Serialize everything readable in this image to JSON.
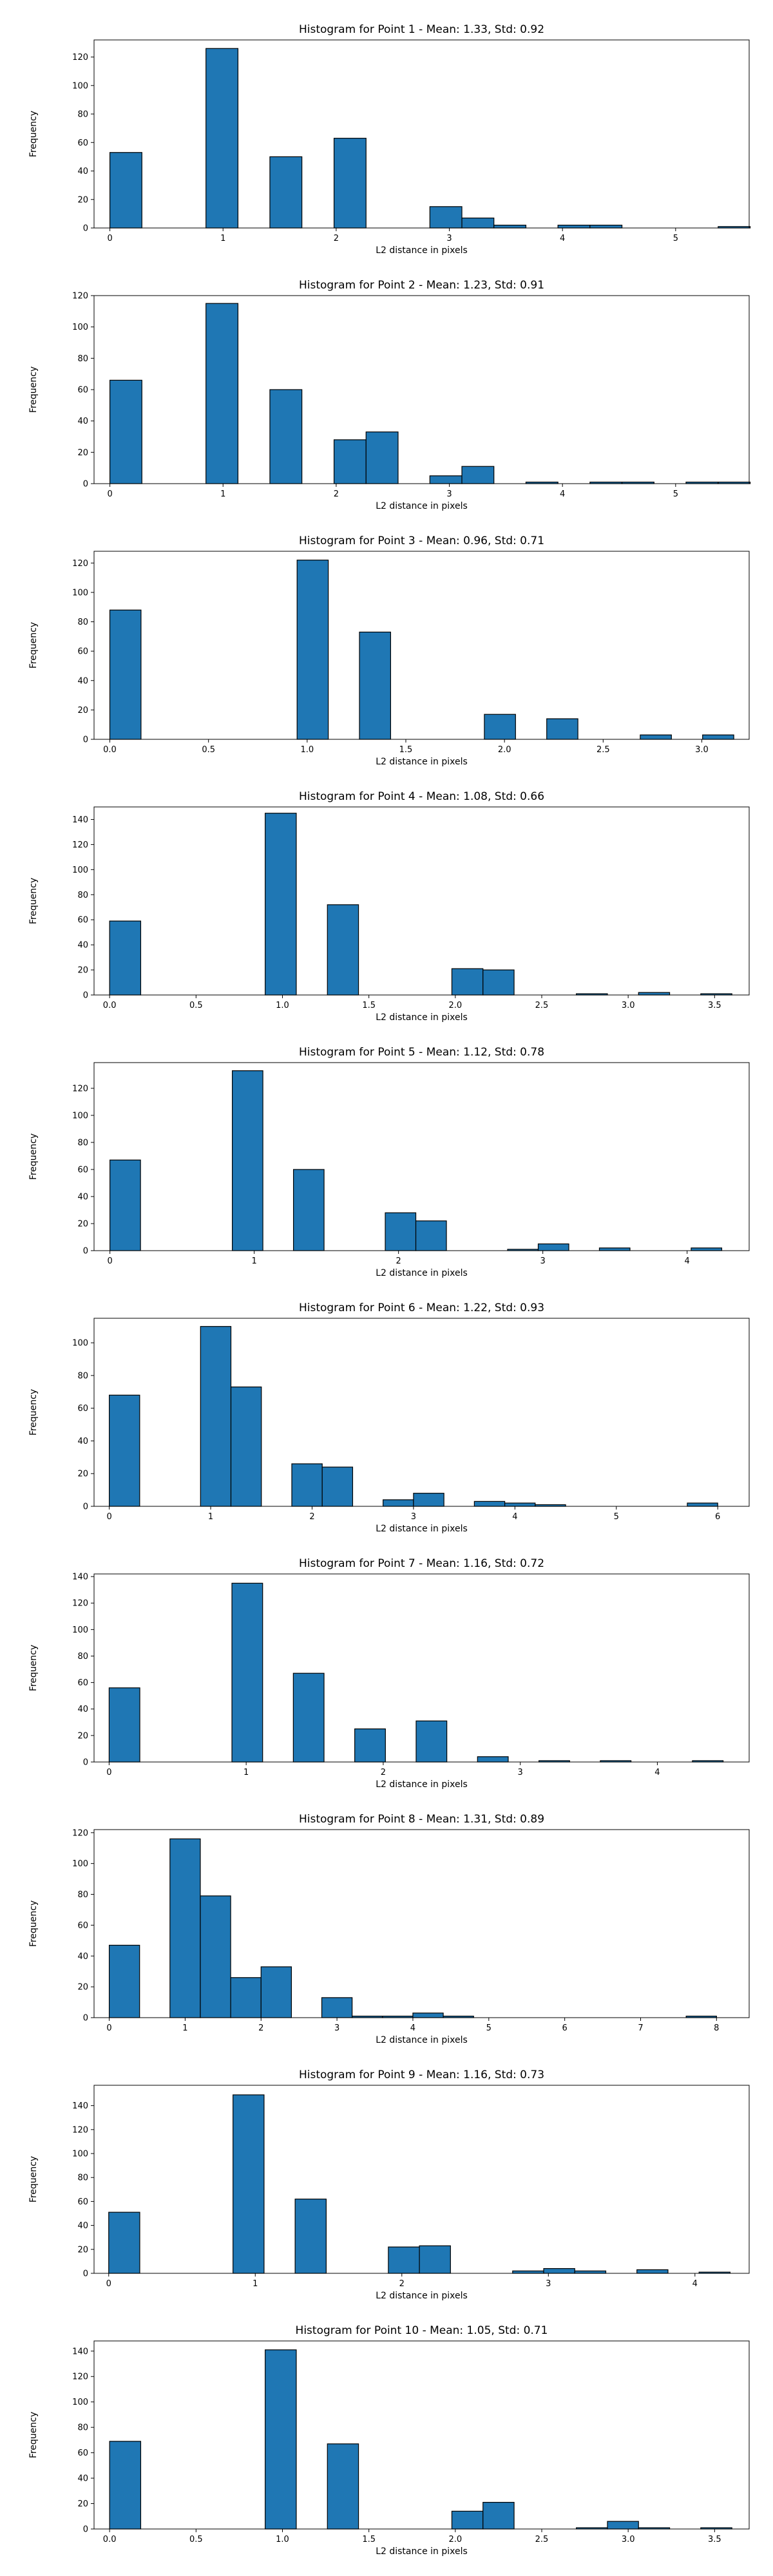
{
  "chart_data": [
    {
      "type": "bar",
      "title": "Histogram for Point 1 - Mean: 1.33, Std: 0.92",
      "xlabel": "L2 distance in pixels",
      "ylabel": "Frequency",
      "xlim": [
        -0.14,
        5.65
      ],
      "ylim": [
        0,
        132
      ],
      "xticks": [
        0,
        1,
        2,
        3,
        4,
        5
      ],
      "yticks": [
        0,
        20,
        40,
        60,
        80,
        100,
        120
      ],
      "bin_width": 0.283,
      "bins": [
        [
          0,
          53
        ],
        [
          0.849,
          126
        ],
        [
          1.414,
          50
        ],
        [
          1.981,
          63
        ],
        [
          2.828,
          15
        ],
        [
          3.111,
          7
        ],
        [
          3.394,
          2
        ],
        [
          3.96,
          2
        ],
        [
          4.243,
          2
        ],
        [
          5.376,
          1
        ]
      ]
    },
    {
      "type": "bar",
      "title": "Histogram for Point 2 - Mean: 1.23, Std: 0.91",
      "xlabel": "L2 distance in pixels",
      "ylabel": "Frequency",
      "xlim": [
        -0.14,
        5.65
      ],
      "ylim": [
        0,
        120
      ],
      "xticks": [
        0,
        1,
        2,
        3,
        4,
        5
      ],
      "yticks": [
        0,
        20,
        40,
        60,
        80,
        100,
        120
      ],
      "bin_width": 0.283,
      "bins": [
        [
          0,
          66
        ],
        [
          0.849,
          115
        ],
        [
          1.414,
          60
        ],
        [
          1.981,
          28
        ],
        [
          2.264,
          33
        ],
        [
          2.828,
          5
        ],
        [
          3.111,
          11
        ],
        [
          3.677,
          1
        ],
        [
          4.243,
          1
        ],
        [
          4.526,
          1
        ],
        [
          5.092,
          1
        ],
        [
          5.376,
          1
        ]
      ]
    },
    {
      "type": "bar",
      "title": "Histogram for Point 3 - Mean: 0.96, Std: 0.71",
      "xlabel": "L2 distance in pixels",
      "ylabel": "Frequency",
      "xlim": [
        -0.08,
        3.24
      ],
      "ylim": [
        0,
        128
      ],
      "xticks": [
        0.0,
        0.5,
        1.0,
        1.5,
        2.0,
        2.5,
        3.0
      ],
      "yticks": [
        0,
        20,
        40,
        60,
        80,
        100,
        120
      ],
      "bin_width": 0.158,
      "bins": [
        [
          0,
          88
        ],
        [
          0.949,
          122
        ],
        [
          1.265,
          73
        ],
        [
          1.898,
          17
        ],
        [
          2.214,
          14
        ],
        [
          2.688,
          3
        ],
        [
          3.004,
          3
        ]
      ]
    },
    {
      "type": "bar",
      "title": "Histogram for Point 4 - Mean: 1.08, Std: 0.66",
      "xlabel": "L2 distance in pixels",
      "ylabel": "Frequency",
      "xlim": [
        -0.09,
        3.7
      ],
      "ylim": [
        0,
        150
      ],
      "xticks": [
        0.0,
        0.5,
        1.0,
        1.5,
        2.0,
        2.5,
        3.0,
        3.5
      ],
      "yticks": [
        0,
        20,
        40,
        60,
        80,
        100,
        120,
        140
      ],
      "bin_width": 0.18,
      "bins": [
        [
          0,
          59
        ],
        [
          0.9,
          145
        ],
        [
          1.26,
          72
        ],
        [
          1.98,
          21
        ],
        [
          2.16,
          20
        ],
        [
          2.7,
          1
        ],
        [
          3.06,
          2
        ],
        [
          3.42,
          1
        ]
      ]
    },
    {
      "type": "bar",
      "title": "Histogram for Point 5 - Mean: 1.12, Std: 0.78",
      "xlabel": "L2 distance in pixels",
      "ylabel": "Frequency",
      "xlim": [
        -0.11,
        4.43
      ],
      "ylim": [
        0,
        139
      ],
      "xticks": [
        0,
        1,
        2,
        3,
        4
      ],
      "yticks": [
        0,
        20,
        40,
        60,
        80,
        100,
        120
      ],
      "bin_width": 0.212,
      "bins": [
        [
          0,
          67
        ],
        [
          0.848,
          133
        ],
        [
          1.272,
          60
        ],
        [
          1.908,
          28
        ],
        [
          2.12,
          22
        ],
        [
          2.756,
          1
        ],
        [
          2.968,
          5
        ],
        [
          3.392,
          2
        ],
        [
          4.028,
          2
        ]
      ]
    },
    {
      "type": "bar",
      "title": "Histogram for Point 6 - Mean: 1.22, Std: 0.93",
      "xlabel": "L2 distance in pixels",
      "ylabel": "Frequency",
      "xlim": [
        -0.15,
        6.31
      ],
      "ylim": [
        0,
        115
      ],
      "xticks": [
        0,
        1,
        2,
        3,
        4,
        5,
        6
      ],
      "yticks": [
        0,
        20,
        40,
        60,
        80,
        100
      ],
      "bin_width": 0.3,
      "bins": [
        [
          0,
          68
        ],
        [
          0.9,
          110
        ],
        [
          1.2,
          73
        ],
        [
          1.8,
          26
        ],
        [
          2.1,
          24
        ],
        [
          2.7,
          4
        ],
        [
          3.0,
          8
        ],
        [
          3.6,
          3
        ],
        [
          3.9,
          2
        ],
        [
          4.2,
          1
        ],
        [
          5.7,
          2
        ]
      ]
    },
    {
      "type": "bar",
      "title": "Histogram for Point 7 - Mean: 1.16, Std: 0.72",
      "xlabel": "L2 distance in pixels",
      "ylabel": "Frequency",
      "xlim": [
        -0.11,
        4.67
      ],
      "ylim": [
        0,
        142
      ],
      "xticks": [
        0,
        1,
        2,
        3,
        4
      ],
      "yticks": [
        0,
        20,
        40,
        60,
        80,
        100,
        120,
        140
      ],
      "bin_width": 0.224,
      "bins": [
        [
          0,
          56
        ],
        [
          0.896,
          135
        ],
        [
          1.344,
          67
        ],
        [
          1.792,
          25
        ],
        [
          2.24,
          31
        ],
        [
          2.688,
          4
        ],
        [
          3.136,
          1
        ],
        [
          3.584,
          1
        ],
        [
          4.256,
          1
        ]
      ]
    },
    {
      "type": "bar",
      "title": "Histogram for Point 8 - Mean: 1.31, Std: 0.89",
      "xlabel": "L2 distance in pixels",
      "ylabel": "Frequency",
      "xlim": [
        -0.2,
        8.43
      ],
      "ylim": [
        0,
        122
      ],
      "xticks": [
        0,
        1,
        2,
        3,
        4,
        5,
        6,
        7,
        8
      ],
      "yticks": [
        0,
        20,
        40,
        60,
        80,
        100,
        120
      ],
      "bin_width": 0.4,
      "bins": [
        [
          0,
          47
        ],
        [
          0.8,
          116
        ],
        [
          1.2,
          79
        ],
        [
          1.6,
          26
        ],
        [
          2.0,
          33
        ],
        [
          2.8,
          13
        ],
        [
          3.2,
          1
        ],
        [
          3.6,
          1
        ],
        [
          4.0,
          3
        ],
        [
          4.4,
          1
        ],
        [
          7.6,
          1
        ]
      ]
    },
    {
      "type": "bar",
      "title": "Histogram for Point 9 - Mean: 1.16, Std: 0.73",
      "xlabel": "L2 distance in pixels",
      "ylabel": "Frequency",
      "xlim": [
        -0.1,
        4.37
      ],
      "ylim": [
        0,
        157
      ],
      "xticks": [
        0,
        1,
        2,
        3,
        4
      ],
      "yticks": [
        0,
        20,
        40,
        60,
        80,
        100,
        120,
        140
      ],
      "bin_width": 0.212,
      "bins": [
        [
          0,
          51
        ],
        [
          0.848,
          149
        ],
        [
          1.272,
          62
        ],
        [
          1.908,
          22
        ],
        [
          2.12,
          23
        ],
        [
          2.756,
          2
        ],
        [
          2.968,
          4
        ],
        [
          3.18,
          2
        ],
        [
          3.604,
          3
        ],
        [
          4.028,
          1
        ]
      ]
    },
    {
      "type": "bar",
      "title": "Histogram for Point 10 - Mean: 1.05, Std: 0.71",
      "xlabel": "L2 distance in pixels",
      "ylabel": "Frequency",
      "xlim": [
        -0.09,
        3.7
      ],
      "ylim": [
        0,
        148
      ],
      "xticks": [
        0.0,
        0.5,
        1.0,
        1.5,
        2.0,
        2.5,
        3.0,
        3.5
      ],
      "yticks": [
        0,
        20,
        40,
        60,
        80,
        100,
        120,
        140
      ],
      "bin_width": 0.18,
      "bins": [
        [
          0,
          69
        ],
        [
          0.9,
          141
        ],
        [
          1.26,
          67
        ],
        [
          1.98,
          14
        ],
        [
          2.16,
          21
        ],
        [
          2.7,
          1
        ],
        [
          2.88,
          6
        ],
        [
          3.06,
          1
        ],
        [
          3.42,
          1
        ]
      ]
    }
  ],
  "colors": {
    "bar_fill": "#1f77b4",
    "bar_edge": "#000000",
    "axis": "#000000",
    "text": "#000000",
    "background": "#ffffff"
  }
}
